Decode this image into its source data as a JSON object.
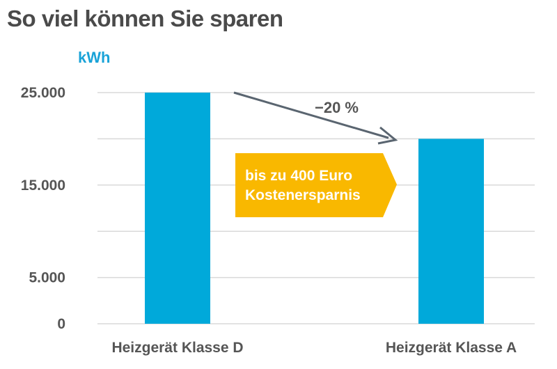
{
  "header": {
    "title": "So viel können Sie sparen"
  },
  "chart_data": {
    "type": "bar",
    "unit_label": "kWh",
    "categories": [
      "Heizgerät Klasse D",
      "Heizgerät Klasse A"
    ],
    "values": [
      25000,
      20000
    ],
    "ylim": [
      0,
      25000
    ],
    "yticks": [
      0,
      5000,
      15000,
      25000
    ],
    "ytick_labels": [
      "0",
      "5.000",
      "15.000",
      "25.000"
    ],
    "grid": true,
    "annotations": {
      "change_label": "−20 %",
      "callout_line1": "bis zu 400 Euro",
      "callout_line2": "Kostenersparnis"
    },
    "colors": {
      "bar": "#00a9da",
      "callout": "#f9b800",
      "arrow": "#5a6570",
      "grid": "#d9d9d9"
    }
  }
}
